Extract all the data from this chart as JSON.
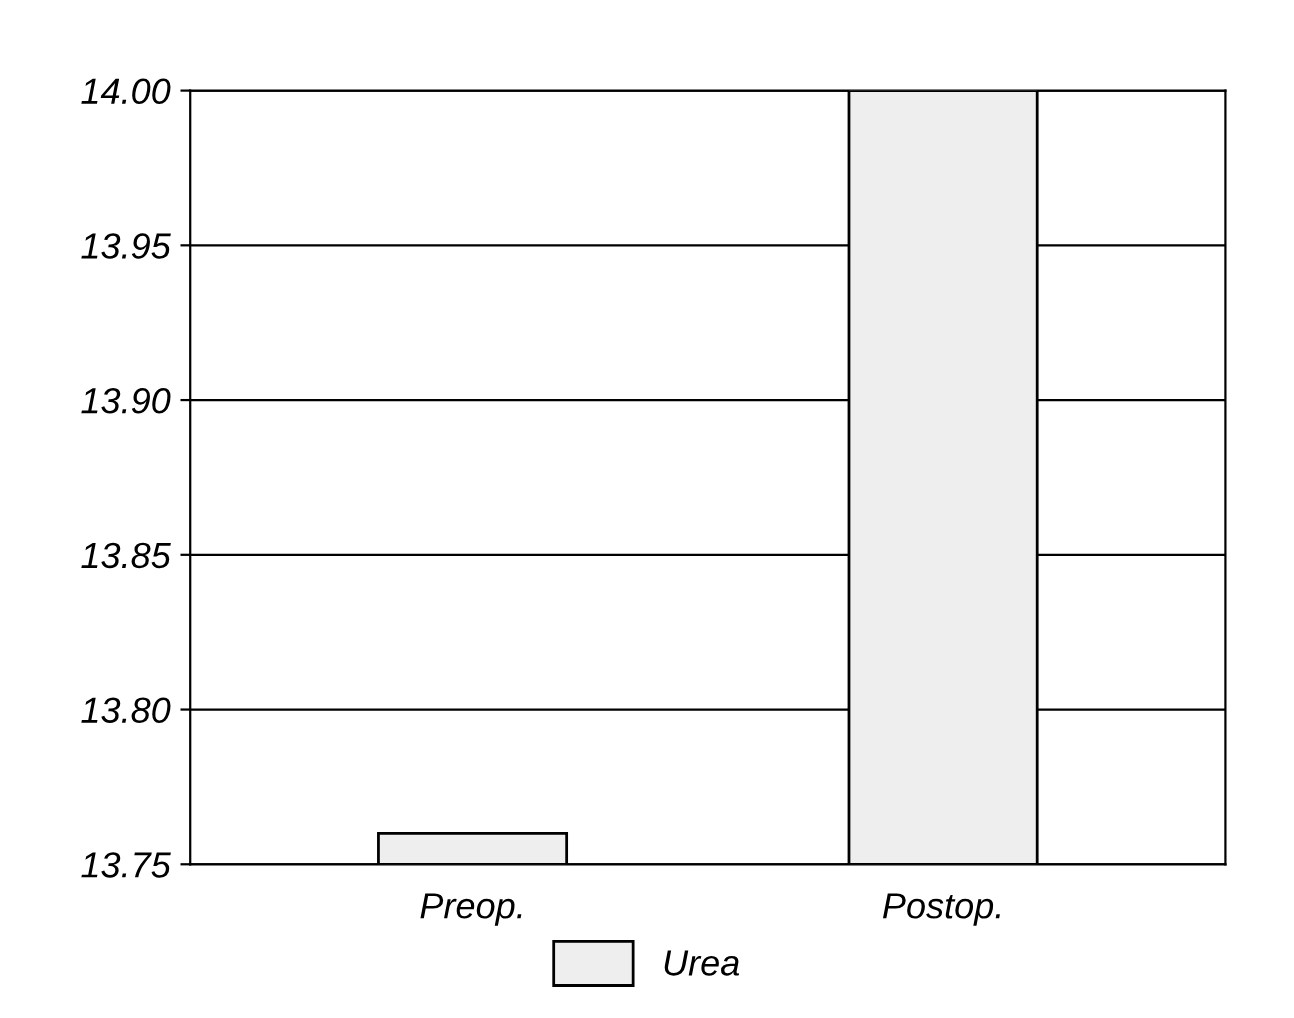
{
  "chart_data": {
    "type": "bar",
    "categories": [
      "Preop.",
      "Postop."
    ],
    "series": [
      {
        "name": "Urea",
        "color": "#eeeeee",
        "values": [
          13.76,
          14.0
        ]
      }
    ],
    "ylim": [
      13.75,
      14.0
    ],
    "yticks": [
      {
        "value": 13.75,
        "label": "13.75"
      },
      {
        "value": 13.8,
        "label": "13.80"
      },
      {
        "value": 13.85,
        "label": "13.85"
      },
      {
        "value": 13.9,
        "label": "13.90"
      },
      {
        "value": 13.95,
        "label": "13.95"
      },
      {
        "value": 14.0,
        "label": "14.00"
      }
    ],
    "grid": "y",
    "legend": "bottom"
  }
}
